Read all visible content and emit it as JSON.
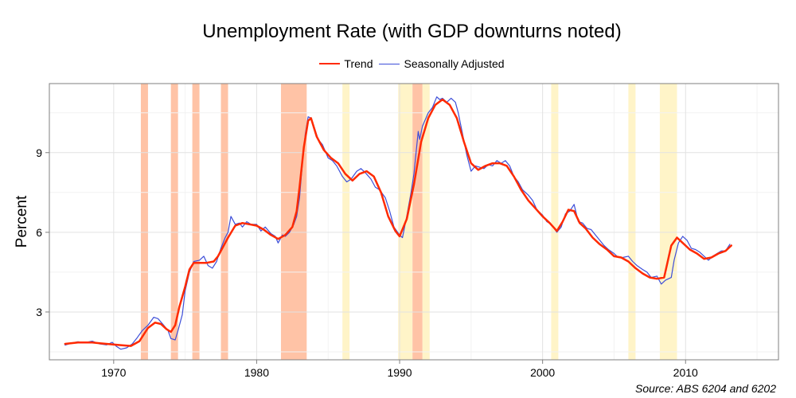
{
  "chart_data": {
    "type": "line",
    "title": "Unemployment Rate (with GDP downturns noted)",
    "xlabel": "",
    "ylabel": "Percent",
    "xlim": [
      1965.5,
      2016.5
    ],
    "ylim": [
      1.2,
      11.6
    ],
    "x_ticks": [
      1970,
      1980,
      1990,
      2000,
      2010
    ],
    "y_ticks": [
      3,
      6,
      9
    ],
    "grid": true,
    "legend_position": "top",
    "legend": [
      {
        "label": "Trend",
        "color": "#ff2a00",
        "width": 2.5
      },
      {
        "label": "Seasonally Adjusted",
        "color": "#3d4ed8",
        "width": 1.2
      }
    ],
    "shaded_periods": [
      {
        "start": 1971.9,
        "end": 1972.4,
        "color": "#ffc3a6"
      },
      {
        "start": 1974.0,
        "end": 1974.5,
        "color": "#ffc3a6"
      },
      {
        "start": 1975.5,
        "end": 1976.0,
        "color": "#ffc3a6"
      },
      {
        "start": 1977.5,
        "end": 1978.0,
        "color": "#ffc3a6"
      },
      {
        "start": 1981.7,
        "end": 1983.5,
        "color": "#ffc3a6"
      },
      {
        "start": 1986.0,
        "end": 1986.5,
        "color": "#fff4c8"
      },
      {
        "start": 1989.9,
        "end": 1990.9,
        "color": "#fff4c8"
      },
      {
        "start": 1990.9,
        "end": 1991.6,
        "color": "#ffc3a6"
      },
      {
        "start": 1991.6,
        "end": 1992.1,
        "color": "#fff4c8"
      },
      {
        "start": 2000.6,
        "end": 2001.1,
        "color": "#fff4c8"
      },
      {
        "start": 2006.0,
        "end": 2006.5,
        "color": "#fff4c8"
      },
      {
        "start": 2008.2,
        "end": 2009.4,
        "color": "#fff4c8"
      }
    ],
    "series": [
      {
        "name": "Trend",
        "x": [
          1966.6,
          1967.5,
          1968.5,
          1969.5,
          1970.5,
          1971.2,
          1971.8,
          1972.4,
          1972.9,
          1973.3,
          1973.7,
          1974.0,
          1974.3,
          1974.6,
          1975.0,
          1975.3,
          1975.6,
          1976.0,
          1976.5,
          1977.0,
          1977.3,
          1977.7,
          1978.0,
          1978.5,
          1979.0,
          1979.5,
          1980.0,
          1980.5,
          1981.0,
          1981.5,
          1982.0,
          1982.5,
          1982.8,
          1983.0,
          1983.3,
          1983.6,
          1983.8,
          1984.2,
          1984.7,
          1985.2,
          1985.7,
          1986.2,
          1986.7,
          1987.2,
          1987.7,
          1988.2,
          1988.7,
          1989.2,
          1989.7,
          1990.0,
          1990.5,
          1991.0,
          1991.5,
          1992.0,
          1992.5,
          1993.0,
          1993.5,
          1994.0,
          1994.5,
          1995.0,
          1995.5,
          1996.0,
          1996.5,
          1997.0,
          1997.5,
          1998.0,
          1998.5,
          1999.0,
          1999.5,
          2000.0,
          2000.5,
          2001.0,
          2001.4,
          2001.8,
          2002.2,
          2002.6,
          2003.0,
          2003.5,
          2004.0,
          2004.5,
          2005.0,
          2005.5,
          2006.0,
          2006.5,
          2007.0,
          2007.5,
          2008.0,
          2008.5,
          2009.0,
          2009.4,
          2009.8,
          2010.3,
          2010.8,
          2011.3,
          2011.8,
          2012.3,
          2012.8,
          2013.2
        ],
        "values": [
          1.8,
          1.85,
          1.85,
          1.8,
          1.75,
          1.72,
          1.9,
          2.4,
          2.6,
          2.55,
          2.35,
          2.25,
          2.5,
          3.2,
          3.95,
          4.6,
          4.85,
          4.85,
          4.85,
          4.9,
          5.1,
          5.5,
          5.8,
          6.25,
          6.35,
          6.3,
          6.25,
          6.1,
          5.9,
          5.75,
          5.9,
          6.2,
          6.8,
          7.7,
          9.2,
          10.2,
          10.3,
          9.6,
          9.1,
          8.8,
          8.6,
          8.2,
          7.95,
          8.2,
          8.3,
          8.1,
          7.5,
          6.6,
          6.05,
          5.85,
          6.5,
          7.8,
          9.4,
          10.3,
          10.8,
          11.0,
          10.8,
          10.3,
          9.4,
          8.6,
          8.35,
          8.5,
          8.6,
          8.6,
          8.5,
          8.1,
          7.6,
          7.2,
          6.9,
          6.6,
          6.35,
          6.05,
          6.4,
          6.85,
          6.8,
          6.35,
          6.15,
          5.8,
          5.55,
          5.35,
          5.1,
          5.05,
          4.9,
          4.65,
          4.45,
          4.3,
          4.25,
          4.3,
          5.5,
          5.8,
          5.6,
          5.35,
          5.2,
          5.0,
          5.05,
          5.2,
          5.3,
          5.5
        ]
      },
      {
        "name": "Seasonally Adjusted",
        "x": [
          1966.6,
          1967.0,
          1967.5,
          1968.0,
          1968.5,
          1969.0,
          1969.5,
          1969.9,
          1970.2,
          1970.5,
          1970.9,
          1971.3,
          1971.6,
          1972.0,
          1972.4,
          1972.8,
          1973.1,
          1973.5,
          1973.8,
          1974.0,
          1974.3,
          1974.5,
          1974.8,
          1975.0,
          1975.3,
          1975.6,
          1976.0,
          1976.3,
          1976.6,
          1976.9,
          1977.2,
          1977.5,
          1977.8,
          1978.0,
          1978.2,
          1978.5,
          1978.8,
          1979.0,
          1979.3,
          1979.6,
          1980.0,
          1980.3,
          1980.6,
          1981.0,
          1981.3,
          1981.5,
          1981.8,
          1982.0,
          1982.3,
          1982.6,
          1982.8,
          1983.0,
          1983.2,
          1983.4,
          1983.6,
          1983.8,
          1984.0,
          1984.3,
          1984.6,
          1985.0,
          1985.3,
          1985.6,
          1986.0,
          1986.3,
          1986.6,
          1987.0,
          1987.3,
          1987.6,
          1988.0,
          1988.3,
          1988.6,
          1989.0,
          1989.3,
          1989.6,
          1990.0,
          1990.2,
          1990.5,
          1990.8,
          1991.0,
          1991.3,
          1991.4,
          1991.6,
          1992.0,
          1992.3,
          1992.6,
          1992.8,
          1993.0,
          1993.3,
          1993.6,
          1993.9,
          1994.1,
          1994.4,
          1994.7,
          1995.0,
          1995.3,
          1995.6,
          1995.9,
          1996.2,
          1996.5,
          1996.8,
          1997.1,
          1997.4,
          1997.7,
          1998.0,
          1998.3,
          1998.6,
          1999.0,
          1999.3,
          1999.6,
          2000.0,
          2000.3,
          2000.6,
          2001.0,
          2001.3,
          2001.6,
          2001.9,
          2002.2,
          2002.5,
          2002.8,
          2003.1,
          2003.4,
          2003.7,
          2004.0,
          2004.3,
          2004.6,
          2005.0,
          2005.3,
          2005.6,
          2006.0,
          2006.3,
          2006.6,
          2007.0,
          2007.3,
          2007.6,
          2008.0,
          2008.3,
          2008.6,
          2009.0,
          2009.2,
          2009.5,
          2009.8,
          2010.1,
          2010.4,
          2010.7,
          2011.0,
          2011.3,
          2011.6,
          2011.9,
          2012.2,
          2012.5,
          2012.8,
          2013.1
        ],
        "values": [
          1.75,
          1.82,
          1.88,
          1.85,
          1.9,
          1.8,
          1.76,
          1.86,
          1.7,
          1.6,
          1.65,
          1.8,
          2.0,
          2.3,
          2.5,
          2.8,
          2.75,
          2.5,
          2.3,
          2.0,
          1.95,
          2.3,
          2.9,
          3.8,
          4.5,
          4.9,
          4.95,
          5.1,
          4.75,
          4.65,
          4.9,
          5.4,
          5.8,
          6.0,
          6.6,
          6.3,
          6.35,
          6.2,
          6.4,
          6.3,
          6.3,
          6.05,
          6.2,
          5.95,
          5.85,
          5.6,
          5.9,
          5.85,
          6.0,
          6.3,
          6.6,
          7.3,
          8.6,
          9.7,
          10.35,
          10.3,
          10.0,
          9.5,
          9.3,
          8.8,
          8.7,
          8.5,
          8.1,
          7.9,
          8.0,
          8.3,
          8.4,
          8.25,
          8.0,
          7.7,
          7.6,
          7.3,
          6.8,
          6.2,
          5.9,
          5.8,
          6.6,
          7.5,
          8.2,
          9.8,
          9.5,
          10.0,
          10.5,
          10.7,
          11.1,
          11.0,
          11.05,
          10.9,
          11.05,
          10.9,
          10.5,
          9.7,
          8.9,
          8.3,
          8.5,
          8.45,
          8.4,
          8.55,
          8.5,
          8.7,
          8.6,
          8.7,
          8.5,
          8.1,
          7.9,
          7.6,
          7.4,
          7.2,
          6.85,
          6.65,
          6.4,
          6.3,
          6.0,
          6.2,
          6.7,
          6.8,
          7.05,
          6.4,
          6.35,
          6.15,
          6.1,
          5.9,
          5.7,
          5.5,
          5.35,
          5.2,
          5.05,
          5.05,
          5.1,
          4.9,
          4.75,
          4.6,
          4.5,
          4.3,
          4.35,
          4.05,
          4.2,
          4.3,
          4.95,
          5.6,
          5.85,
          5.7,
          5.4,
          5.35,
          5.25,
          5.1,
          4.95,
          5.1,
          5.2,
          5.3,
          5.3,
          5.55
        ]
      }
    ]
  },
  "source": "Source: ABS 6204 and 6202"
}
